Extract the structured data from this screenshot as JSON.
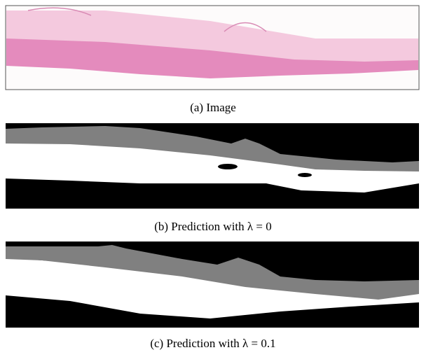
{
  "panels": [
    {
      "caption": "(a) Image"
    },
    {
      "caption": "(b) Prediction with λ = 0"
    },
    {
      "caption": "(c) Prediction with λ = 0.1"
    }
  ]
}
